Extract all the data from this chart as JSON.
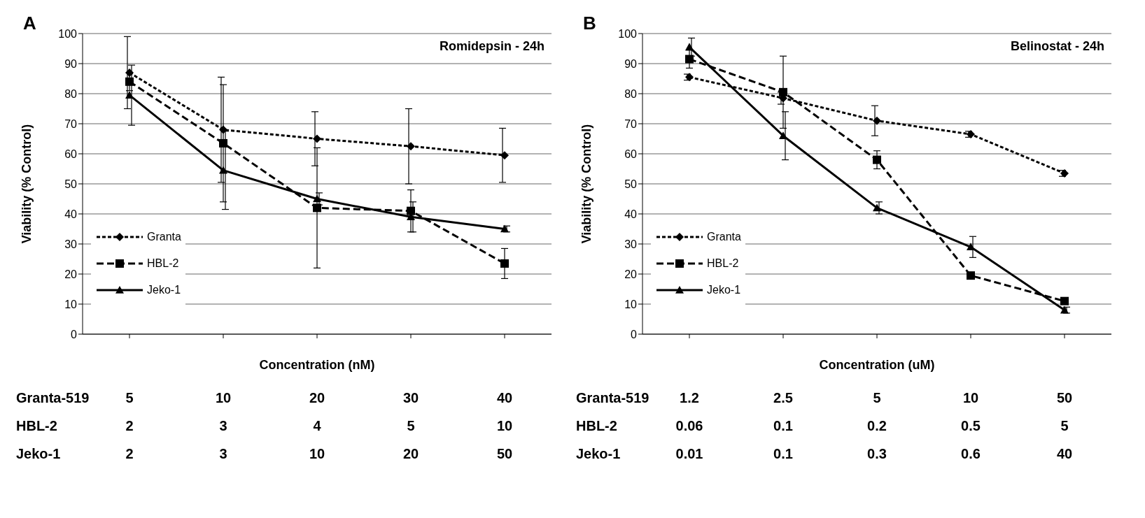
{
  "chart_data": [
    {
      "type": "line",
      "title": "A",
      "subtitle": "Romidepsin - 24h",
      "xlabel": "Concentration (nM)",
      "ylabel": "Viability (% Control)",
      "categories": [
        null,
        null,
        null,
        null,
        null
      ],
      "series": [
        {
          "name": "Granta",
          "color": "#000000",
          "marker": "diamond",
          "line_style": "dotted",
          "values": [
            87,
            68,
            65,
            62.5,
            59.5
          ],
          "errors": [
            12,
            17.5,
            9,
            12.5,
            9
          ]
        },
        {
          "name": "HBL-2",
          "color": "#000000",
          "marker": "square",
          "line_style": "dashed",
          "values": [
            84,
            63.5,
            42,
            41,
            23.5
          ],
          "errors": [
            3,
            19.5,
            20,
            7,
            5
          ]
        },
        {
          "name": "Jeko-1",
          "color": "#000000",
          "marker": "triangle",
          "line_style": "solid",
          "values": [
            79.5,
            54.5,
            45,
            39,
            35
          ],
          "errors": [
            10,
            13,
            2,
            5,
            1
          ]
        }
      ],
      "ylim": [
        0,
        100
      ],
      "yticks": [
        0,
        10,
        20,
        30,
        40,
        50,
        60,
        70,
        80,
        90,
        100
      ],
      "grid": "y",
      "legend": "left",
      "annotations": [
        "Granta-519",
        "5",
        "10",
        "20",
        "30",
        "40",
        "HBL-2",
        "2",
        "3",
        "4",
        "5",
        "10",
        "Jeko-1",
        "2",
        "3",
        "10",
        "20",
        "50"
      ]
    },
    {
      "type": "line",
      "title": "B",
      "subtitle": "Belinostat - 24h",
      "xlabel": "Concentration (uM)",
      "ylabel": "Viability (% Control)",
      "categories": [
        null,
        null,
        null,
        null,
        null
      ],
      "series": [
        {
          "name": "Granta",
          "color": "#000000",
          "marker": "diamond",
          "line_style": "dotted",
          "values": [
            85.5,
            78.5,
            71,
            66.5,
            53.5
          ],
          "errors": [
            1,
            2,
            5,
            1,
            1
          ]
        },
        {
          "name": "HBL-2",
          "color": "#000000",
          "marker": "square",
          "line_style": "dashed",
          "values": [
            91.5,
            80.5,
            58,
            19.5,
            11
          ],
          "errors": [
            3,
            12,
            3,
            1,
            1
          ]
        },
        {
          "name": "Jeko-1",
          "color": "#000000",
          "marker": "triangle",
          "line_style": "solid",
          "values": [
            95.5,
            66,
            42,
            29,
            8
          ],
          "errors": [
            3,
            8,
            2,
            3.5,
            1
          ]
        }
      ],
      "ylim": [
        0,
        100
      ],
      "yticks": [
        0,
        10,
        20,
        30,
        40,
        50,
        60,
        70,
        80,
        90,
        100
      ],
      "grid": "y",
      "legend": "left",
      "annotations": [
        "Granta-519",
        "1.2",
        "2.5",
        "5",
        "10",
        "50",
        "HBL-2",
        "0.06",
        "0.1",
        "0.2",
        "0.5",
        "5",
        "Jeko-1",
        "0.01",
        "0.1",
        "0.3",
        "0.6",
        "40"
      ]
    }
  ]
}
